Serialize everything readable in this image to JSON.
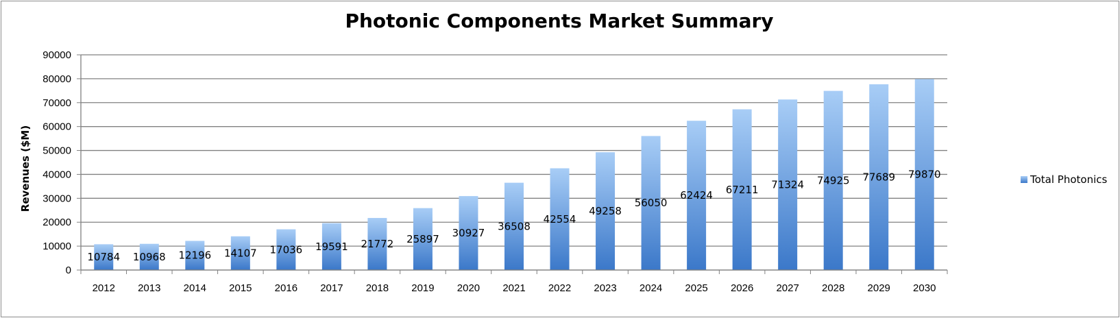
{
  "chart_data": {
    "type": "bar",
    "title": "Photonic Components Market Summary",
    "xlabel": "",
    "ylabel": "Revenues ($M)",
    "ylim": [
      0,
      90000
    ],
    "yticks": [
      0,
      10000,
      20000,
      30000,
      40000,
      50000,
      60000,
      70000,
      80000,
      90000
    ],
    "grid": true,
    "legend_position": "right",
    "categories": [
      "2012",
      "2013",
      "2014",
      "2015",
      "2016",
      "2017",
      "2018",
      "2019",
      "2020",
      "2021",
      "2022",
      "2023",
      "2024",
      "2025",
      "2026",
      "2027",
      "2028",
      "2029",
      "2030"
    ],
    "series": [
      {
        "name": "Total Photonics",
        "color_top": "#a8cdf6",
        "color_bottom": "#3b78c9",
        "values": [
          10784,
          10968,
          12196,
          14107,
          17036,
          19591,
          21772,
          25897,
          30927,
          36508,
          42554,
          49258,
          56050,
          62424,
          67211,
          71324,
          74925,
          77689,
          79870
        ]
      }
    ]
  }
}
